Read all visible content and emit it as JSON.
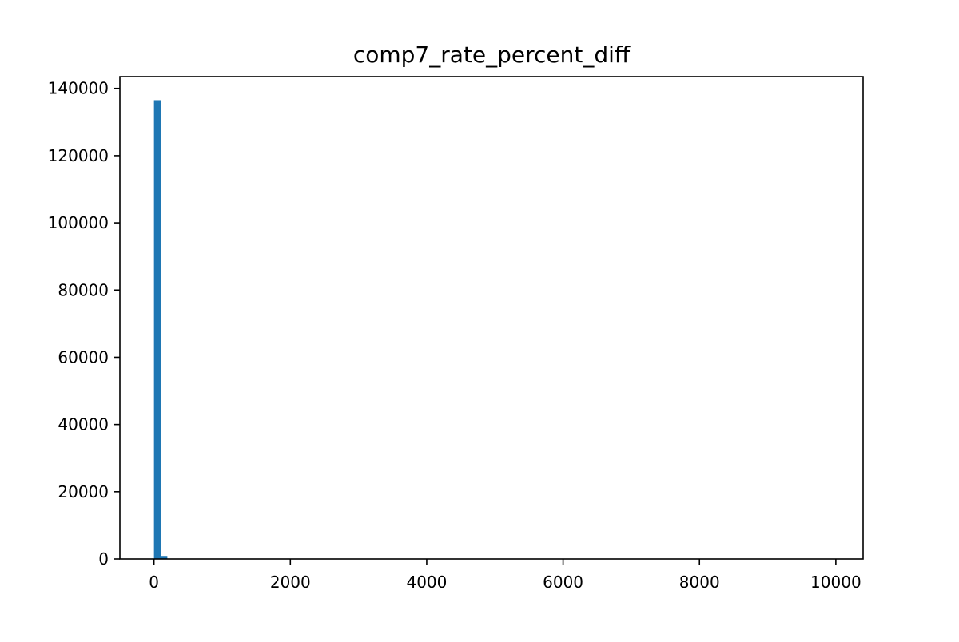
{
  "chart_data": {
    "type": "bar",
    "title": "comp7_rate_percent_diff",
    "xlabel": "",
    "ylabel": "",
    "xlim": [
      -500,
      10400
    ],
    "ylim": [
      0,
      143500
    ],
    "xticks": [
      0,
      2000,
      4000,
      6000,
      8000,
      10000
    ],
    "xtick_labels": [
      "0",
      "2000",
      "4000",
      "6000",
      "8000",
      "10000"
    ],
    "yticks": [
      0,
      20000,
      40000,
      60000,
      80000,
      100000,
      120000,
      140000
    ],
    "ytick_labels": [
      "0",
      "20000",
      "40000",
      "60000",
      "80000",
      "100000",
      "120000",
      "140000"
    ],
    "grid": false,
    "bar_color": "#1f77b4",
    "bins": [
      {
        "x0": 0,
        "x1": 98,
        "count": 136500
      },
      {
        "x0": 98,
        "x1": 196,
        "count": 900
      },
      {
        "x0": 196,
        "x1": 294,
        "count": 60
      },
      {
        "x0": 294,
        "x1": 392,
        "count": 20
      }
    ]
  }
}
